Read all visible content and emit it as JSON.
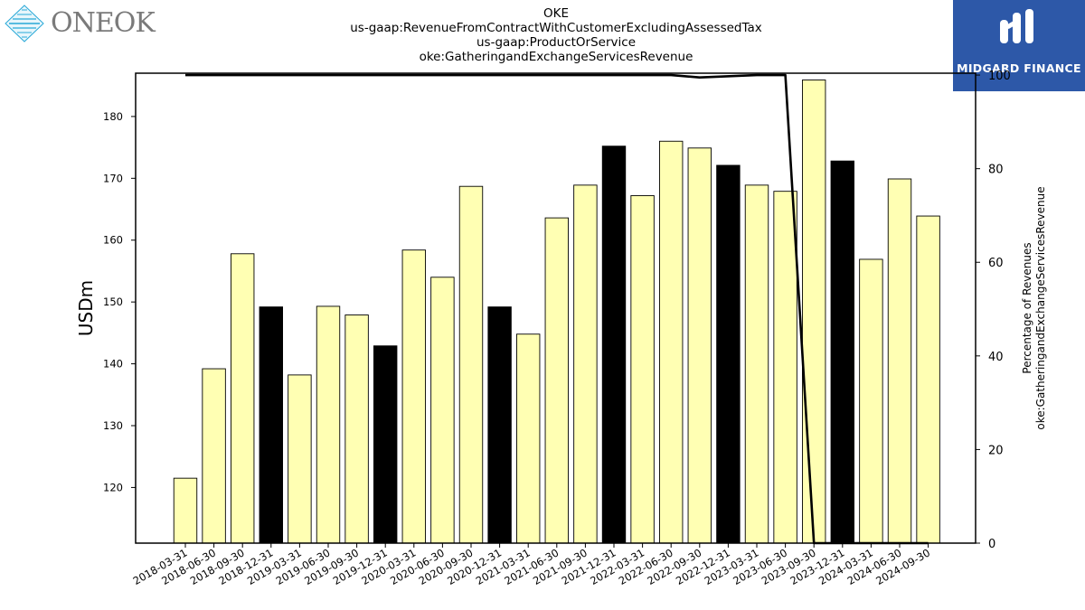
{
  "header": {
    "lines": [
      "OKE",
      "us-gaap:RevenueFromContractWithCustomerExcludingAssessedTax",
      "us-gaap:ProductOrService",
      "oke:GatheringandExchangeServicesRevenue"
    ]
  },
  "logos": {
    "left_text": "ONEOK",
    "right_text": "MIDGARD FINANCE",
    "right_bg": "#2d58a8"
  },
  "chart_data": {
    "type": "bar",
    "categories": [
      "2018-03-31",
      "2018-06-30",
      "2018-09-30",
      "2018-12-31",
      "2019-03-31",
      "2019-06-30",
      "2019-09-30",
      "2019-12-31",
      "2020-03-31",
      "2020-06-30",
      "2020-09-30",
      "2020-12-31",
      "2021-03-31",
      "2021-06-30",
      "2021-09-30",
      "2021-12-31",
      "2022-03-31",
      "2022-06-30",
      "2022-09-30",
      "2022-12-31",
      "2023-03-31",
      "2023-06-30",
      "2023-09-30",
      "2023-12-31",
      "2024-03-31",
      "2024-06-30",
      "2024-09-30"
    ],
    "values": [
      121.5,
      139.2,
      157.8,
      149.2,
      138.2,
      149.3,
      147.9,
      142.9,
      158.4,
      154.0,
      168.7,
      149.2,
      144.8,
      163.6,
      168.9,
      175.2,
      167.2,
      176.0,
      174.9,
      172.1,
      168.9,
      167.9,
      185.9,
      172.8,
      156.9,
      169.9,
      163.9
    ],
    "q4_highlight": [
      false,
      false,
      false,
      true,
      false,
      false,
      false,
      true,
      false,
      false,
      false,
      true,
      false,
      false,
      false,
      true,
      false,
      false,
      false,
      true,
      false,
      false,
      false,
      true,
      false,
      false,
      false
    ],
    "bar_color": "#ffffb3",
    "q4_bar_color": "#000000",
    "ylabel": "USDm",
    "ylim": [
      111,
      187
    ],
    "yticks": [
      120,
      130,
      140,
      150,
      160,
      170,
      180
    ],
    "secondary_axis": {
      "label_lines": [
        "Percentage of Revenues",
        "oke:GatheringandExchangeServicesRevenue"
      ],
      "ylim": [
        0,
        100.4
      ],
      "yticks": [
        0,
        20,
        40,
        60,
        80,
        100
      ]
    },
    "line_series": {
      "values": [
        100,
        100,
        100,
        null,
        100,
        100,
        100,
        null,
        100,
        100,
        100,
        null,
        100,
        100,
        100,
        null,
        100,
        100,
        99.5,
        null,
        100,
        100,
        0,
        null,
        0,
        0,
        0
      ],
      "color": "#000000"
    }
  }
}
